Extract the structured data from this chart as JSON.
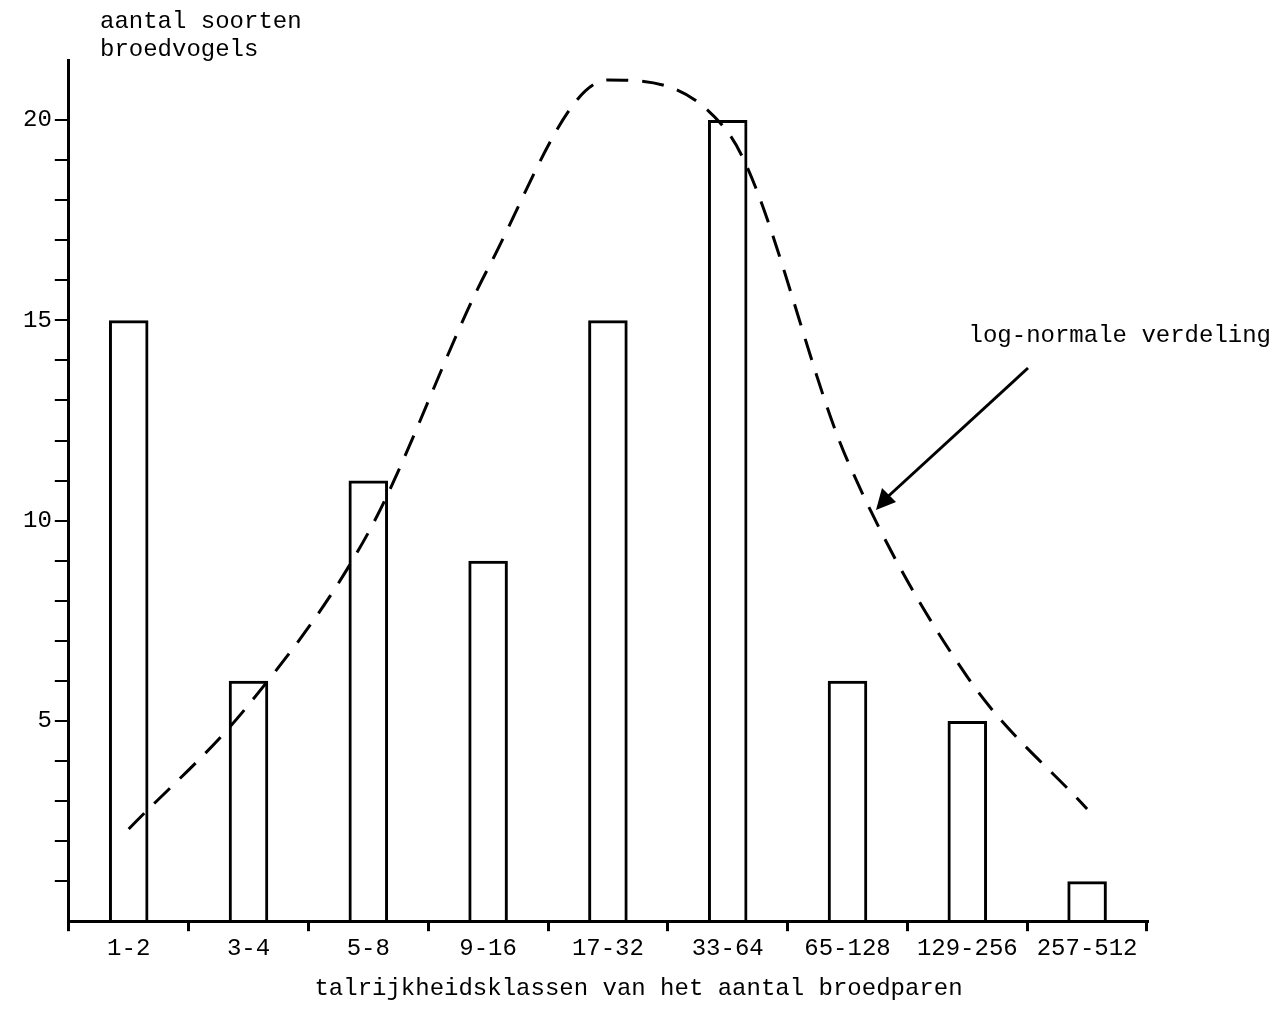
{
  "chart_data": {
    "type": "bar",
    "ylabel": "aantal soorten\nbroedvogels",
    "xlabel": "talrijkheidsklassen van het aantal broedparen",
    "categories": [
      "1-2",
      "3-4",
      "5-8",
      "9-16",
      "17-32",
      "33-64",
      "65-128",
      "129-256",
      "257-512"
    ],
    "series": [
      {
        "color": "#000000",
        "values": [
          15,
          6,
          11,
          9,
          15,
          20,
          6,
          5,
          1
        ]
      },
      {
        "type": "line",
        "color": "#000000",
        "line_style": "dashed",
        "marker": "none",
        "values": [
          2.3,
          5.4,
          9.7,
          16.3,
          21,
          19.7,
          11.5,
          6.1,
          2.8
        ]
      }
    ],
    "ylim": [
      0,
      21.5
    ],
    "yticks": [
      {
        "value": 1,
        "label": null
      },
      {
        "value": 2,
        "label": null
      },
      {
        "value": 3,
        "label": null
      },
      {
        "value": 4,
        "label": null
      },
      5,
      {
        "value": 6,
        "label": null
      },
      {
        "value": 7,
        "label": null
      },
      {
        "value": 8,
        "label": null
      },
      {
        "value": 9,
        "label": null
      },
      10,
      {
        "value": 11,
        "label": null
      },
      {
        "value": 12,
        "label": null
      },
      {
        "value": 13,
        "label": null
      },
      {
        "value": 14,
        "label": null
      },
      15,
      {
        "value": 16,
        "label": null
      },
      {
        "value": 17,
        "label": null
      },
      {
        "value": 18,
        "label": null
      },
      {
        "value": 19,
        "label": null
      },
      20
    ],
    "grid": false,
    "legend": false,
    "annotations": [
      "log-normale verdeling"
    ]
  }
}
